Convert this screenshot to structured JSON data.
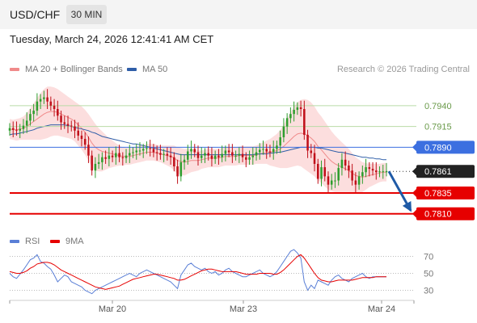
{
  "header": {
    "pair": "USD/CHF",
    "timeframe": "30 MIN"
  },
  "datetime": "Tuesday, March 24, 2026 12:41:41 AM CET",
  "legend": [
    {
      "label": "MA 20 + Bollinger Bands",
      "color": "#f08a8a"
    },
    {
      "label": "MA 50",
      "color": "#2f5ea8"
    }
  ],
  "copyright": "Research © 2026 Trading Central",
  "rsi_legend": [
    {
      "label": "RSI",
      "color": "#5a7fd6"
    },
    {
      "label": "9MA",
      "color": "#e60000"
    }
  ],
  "colors": {
    "bullish": "#2e9e2e",
    "bearish": "#c0101a",
    "support": "#e60000",
    "resistance": "#b9dba6",
    "pivot_line": "#3c6fe0",
    "bollinger": "#fbd3d3",
    "arrow": "#1f5aa6"
  },
  "chart_data": [
    {
      "type": "candlestick",
      "x_ticks": [
        "Mar 20",
        "Mar 23",
        "Mar 24"
      ],
      "ylim": [
        0.78,
        0.797
      ],
      "levels": [
        {
          "value": 0.794,
          "label": "0.7940",
          "kind": "resistance"
        },
        {
          "value": 0.7915,
          "label": "0.7915",
          "kind": "resistance"
        },
        {
          "value": 0.789,
          "label": "0.7890",
          "kind": "pivot"
        },
        {
          "value": 0.7861,
          "label": "0.7861",
          "kind": "last_price"
        },
        {
          "value": 0.7835,
          "label": "0.7835",
          "kind": "support"
        },
        {
          "value": 0.781,
          "label": "0.7810",
          "kind": "support"
        }
      ],
      "close": [
        0.7913,
        0.7911,
        0.791,
        0.7912,
        0.7916,
        0.7922,
        0.793,
        0.7934,
        0.7945,
        0.7948,
        0.795,
        0.7945,
        0.794,
        0.7936,
        0.7928,
        0.792,
        0.7918,
        0.7916,
        0.7915,
        0.791,
        0.7904,
        0.79,
        0.7893,
        0.788,
        0.7862,
        0.787,
        0.7872,
        0.7878,
        0.7876,
        0.788,
        0.7878,
        0.7883,
        0.7878,
        0.7877,
        0.788,
        0.7883,
        0.7884,
        0.7886,
        0.7886,
        0.7888,
        0.7889,
        0.7888,
        0.7884,
        0.7883,
        0.7881,
        0.7882,
        0.788,
        0.7878,
        0.7867,
        0.7855,
        0.7872,
        0.7875,
        0.7885,
        0.7888,
        0.7884,
        0.7877,
        0.788,
        0.7883,
        0.788,
        0.7876,
        0.788,
        0.7878,
        0.7882,
        0.7886,
        0.7884,
        0.788,
        0.788,
        0.7882,
        0.7878,
        0.7875,
        0.7878,
        0.788,
        0.7884,
        0.7887,
        0.7888,
        0.7885,
        0.7884,
        0.7888,
        0.7892,
        0.7902,
        0.7915,
        0.7925,
        0.793,
        0.7935,
        0.7938,
        0.7936,
        0.7905,
        0.7886,
        0.7883,
        0.787,
        0.7852,
        0.7866,
        0.7855,
        0.7845,
        0.785,
        0.785,
        0.7865,
        0.7875,
        0.7868,
        0.7862,
        0.785,
        0.7845,
        0.7855,
        0.786,
        0.7866,
        0.7864,
        0.7862,
        0.786,
        0.7861,
        0.7861,
        0.7861
      ],
      "ma20": [
        0.7912,
        0.7911,
        0.7911,
        0.7912,
        0.7913,
        0.7915,
        0.7918,
        0.7921,
        0.7924,
        0.7927,
        0.793,
        0.7932,
        0.7933,
        0.7933,
        0.7932,
        0.793,
        0.7928,
        0.7926,
        0.7924,
        0.7921,
        0.7917,
        0.7913,
        0.7908,
        0.7902,
        0.7895,
        0.789,
        0.7887,
        0.7885,
        0.7884,
        0.7883,
        0.7882,
        0.7881,
        0.788,
        0.7879,
        0.7879,
        0.7879,
        0.788,
        0.7881,
        0.7882,
        0.7883,
        0.7884,
        0.7884,
        0.7884,
        0.7883,
        0.7882,
        0.7881,
        0.788,
        0.7879,
        0.7877,
        0.7874,
        0.7873,
        0.7872,
        0.7873,
        0.7874,
        0.7874,
        0.7874,
        0.7875,
        0.7876,
        0.7877,
        0.7877,
        0.7877,
        0.7877,
        0.7878,
        0.7879,
        0.7879,
        0.7879,
        0.7879,
        0.788,
        0.788,
        0.788,
        0.788,
        0.788,
        0.7881,
        0.7882,
        0.7883,
        0.7884,
        0.7884,
        0.7885,
        0.7886,
        0.7888,
        0.7891,
        0.7895,
        0.7899,
        0.7903,
        0.7906,
        0.7907,
        0.7906,
        0.7904,
        0.7901,
        0.7897,
        0.7891,
        0.7887,
        0.7882,
        0.7877,
        0.7873,
        0.787,
        0.7868,
        0.7866,
        0.7864,
        0.7862,
        0.7859,
        0.7856,
        0.7855,
        0.7854,
        0.7855,
        0.7856,
        0.7857,
        0.7858,
        0.7859,
        0.786,
        0.786
      ],
      "ma50": [
        0.7905,
        0.7906,
        0.7906,
        0.7907,
        0.7908,
        0.7909,
        0.791,
        0.7911,
        0.7913,
        0.7914,
        0.7915,
        0.7916,
        0.7917,
        0.7917,
        0.7917,
        0.7917,
        0.7917,
        0.7916,
        0.7915,
        0.7914,
        0.7913,
        0.7912,
        0.7911,
        0.791,
        0.7908,
        0.7907,
        0.7905,
        0.7903,
        0.7902,
        0.7901,
        0.79,
        0.7899,
        0.7898,
        0.7897,
        0.7896,
        0.7895,
        0.7894,
        0.7894,
        0.7893,
        0.7892,
        0.7891,
        0.789,
        0.7889,
        0.7888,
        0.7887,
        0.7886,
        0.7885,
        0.7884,
        0.7883,
        0.7882,
        0.7881,
        0.7881,
        0.7881,
        0.7881,
        0.7881,
        0.7881,
        0.7881,
        0.7881,
        0.7881,
        0.7881,
        0.7881,
        0.7881,
        0.7881,
        0.7881,
        0.7881,
        0.7881,
        0.7881,
        0.7881,
        0.7881,
        0.7881,
        0.7881,
        0.7881,
        0.7882,
        0.7882,
        0.7882,
        0.7882,
        0.7883,
        0.7883,
        0.7884,
        0.7884,
        0.7885,
        0.7886,
        0.7887,
        0.7888,
        0.7889,
        0.789,
        0.789,
        0.789,
        0.789,
        0.789,
        0.7889,
        0.7889,
        0.7888,
        0.7887,
        0.7886,
        0.7885,
        0.7884,
        0.7884,
        0.7883,
        0.7882,
        0.7881,
        0.788,
        0.7879,
        0.7878,
        0.7878,
        0.7877,
        0.7877,
        0.7876,
        0.7876,
        0.7875,
        0.7875
      ],
      "band_width": [
        0.0012,
        0.0012,
        0.0013,
        0.0013,
        0.0014,
        0.0016,
        0.0019,
        0.0022,
        0.0025,
        0.0028,
        0.003,
        0.0031,
        0.003,
        0.0029,
        0.0028,
        0.0027,
        0.0026,
        0.0025,
        0.0024,
        0.0024,
        0.0025,
        0.0026,
        0.0027,
        0.0028,
        0.0029,
        0.0028,
        0.0026,
        0.0024,
        0.0021,
        0.0018,
        0.0016,
        0.0014,
        0.0012,
        0.0011,
        0.001,
        0.001,
        0.001,
        0.001,
        0.001,
        0.001,
        0.001,
        0.001,
        0.001,
        0.001,
        0.001,
        0.0011,
        0.0012,
        0.0013,
        0.0015,
        0.0016,
        0.0016,
        0.0016,
        0.0015,
        0.0014,
        0.0013,
        0.0012,
        0.0011,
        0.0011,
        0.0011,
        0.0011,
        0.0011,
        0.0011,
        0.0011,
        0.0011,
        0.0011,
        0.0011,
        0.0011,
        0.0011,
        0.0011,
        0.0011,
        0.0011,
        0.0011,
        0.0011,
        0.0012,
        0.0013,
        0.0014,
        0.0016,
        0.0018,
        0.002,
        0.0023,
        0.0026,
        0.003,
        0.0033,
        0.0036,
        0.0038,
        0.004,
        0.0042,
        0.0043,
        0.0043,
        0.0042,
        0.0041,
        0.004,
        0.0039,
        0.0038,
        0.0036,
        0.0034,
        0.0032,
        0.003,
        0.0028,
        0.0026,
        0.0024,
        0.0022,
        0.002,
        0.0018,
        0.0016,
        0.0014,
        0.0013,
        0.0012,
        0.0011,
        0.0011,
        0.0011
      ]
    },
    {
      "type": "line",
      "ylim": [
        20,
        80
      ],
      "y_ticks": [
        70,
        50,
        30
      ],
      "rsi": [
        50,
        46,
        44,
        49,
        54,
        60,
        66,
        68,
        72,
        64,
        62,
        58,
        55,
        48,
        40,
        44,
        48,
        46,
        40,
        38,
        36,
        34,
        30,
        28,
        26,
        30,
        32,
        34,
        36,
        38,
        40,
        42,
        44,
        46,
        48,
        50,
        48,
        46,
        50,
        52,
        54,
        52,
        50,
        48,
        46,
        44,
        42,
        40,
        36,
        32,
        48,
        54,
        60,
        62,
        58,
        56,
        54,
        56,
        52,
        50,
        52,
        48,
        50,
        54,
        56,
        52,
        50,
        48,
        46,
        46,
        48,
        50,
        52,
        54,
        50,
        48,
        46,
        48,
        52,
        58,
        64,
        70,
        76,
        78,
        74,
        68,
        40,
        30,
        36,
        32,
        42,
        40,
        38,
        36,
        42,
        46,
        48,
        44,
        42,
        40,
        44,
        46,
        48,
        50,
        46,
        44,
        46,
        46,
        46,
        46,
        46
      ],
      "ma9": [
        52,
        51,
        50,
        50,
        51,
        53,
        56,
        58,
        61,
        62,
        63,
        63,
        62,
        60,
        57,
        54,
        52,
        50,
        48,
        46,
        44,
        42,
        40,
        38,
        36,
        34,
        33,
        32,
        31,
        32,
        33,
        34,
        35,
        37,
        39,
        41,
        43,
        44,
        45,
        46,
        47,
        48,
        49,
        49,
        48,
        47,
        46,
        45,
        44,
        42,
        42,
        43,
        45,
        47,
        49,
        51,
        53,
        54,
        55,
        55,
        54,
        53,
        52,
        52,
        52,
        52,
        52,
        51,
        50,
        49,
        49,
        49,
        49,
        50,
        50,
        50,
        50,
        49,
        49,
        51,
        54,
        58,
        62,
        66,
        70,
        72,
        68,
        62,
        56,
        50,
        45,
        42,
        41,
        40,
        40,
        41,
        42,
        42,
        42,
        42,
        42,
        43,
        44,
        45,
        45,
        45,
        45,
        46,
        46,
        46,
        46
      ]
    }
  ],
  "shared_x_ticks": {
    "mar20_index": 16,
    "mar23_index": 37,
    "mar24_index": 62
  }
}
